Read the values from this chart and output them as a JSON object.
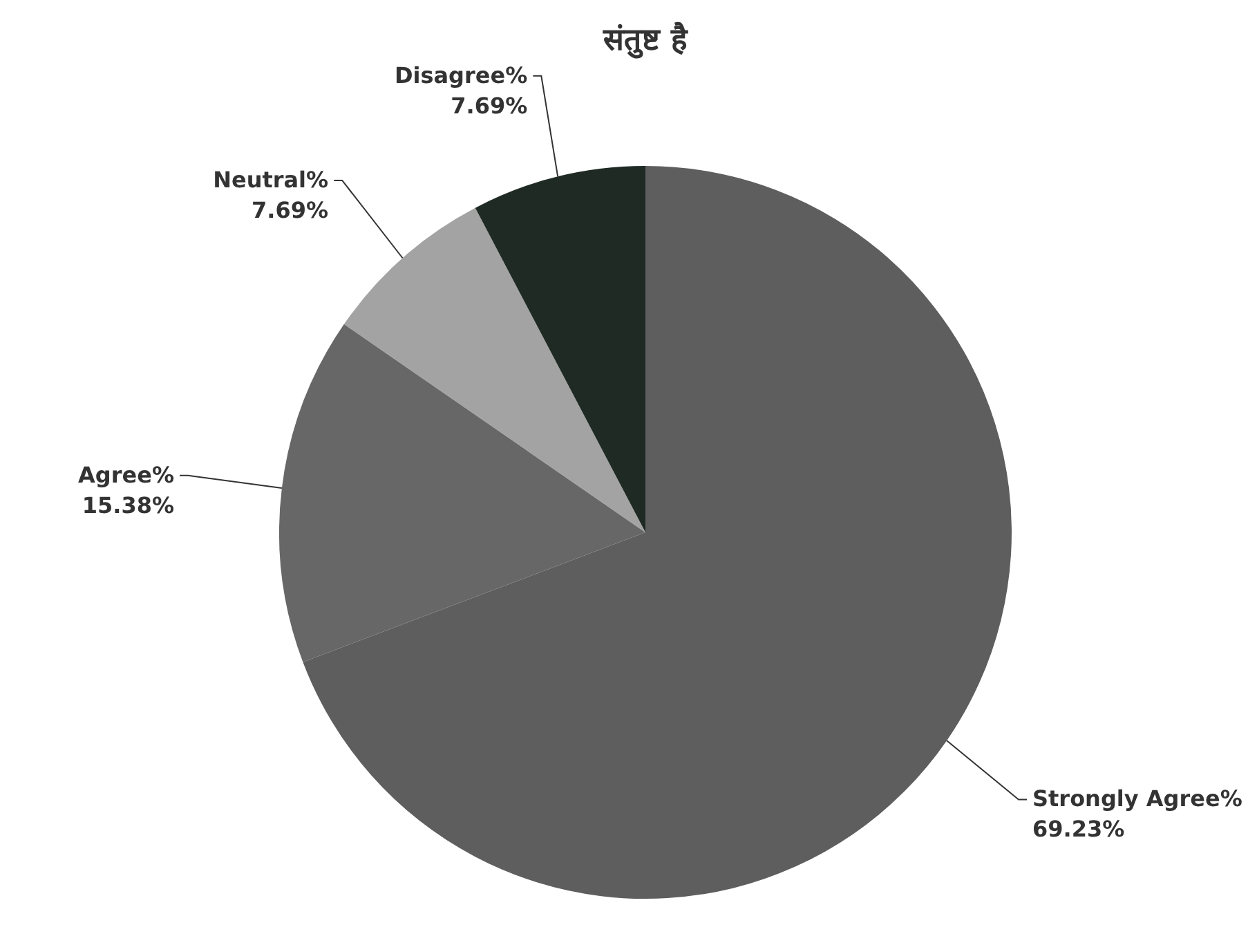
{
  "chart_data": {
    "type": "pie",
    "title": "संतुष्ट है",
    "categories": [
      "Strongly Agree%",
      "Agree%",
      "Neutral%",
      "Disagree%"
    ],
    "values": [
      69.23,
      15.38,
      7.69,
      7.69
    ],
    "value_labels": [
      "69.23%",
      "15.38%",
      "7.69%",
      "7.69%"
    ],
    "colors": [
      "#5e5e5e",
      "#676767",
      "#a3a3a3",
      "#1f2a24"
    ]
  }
}
